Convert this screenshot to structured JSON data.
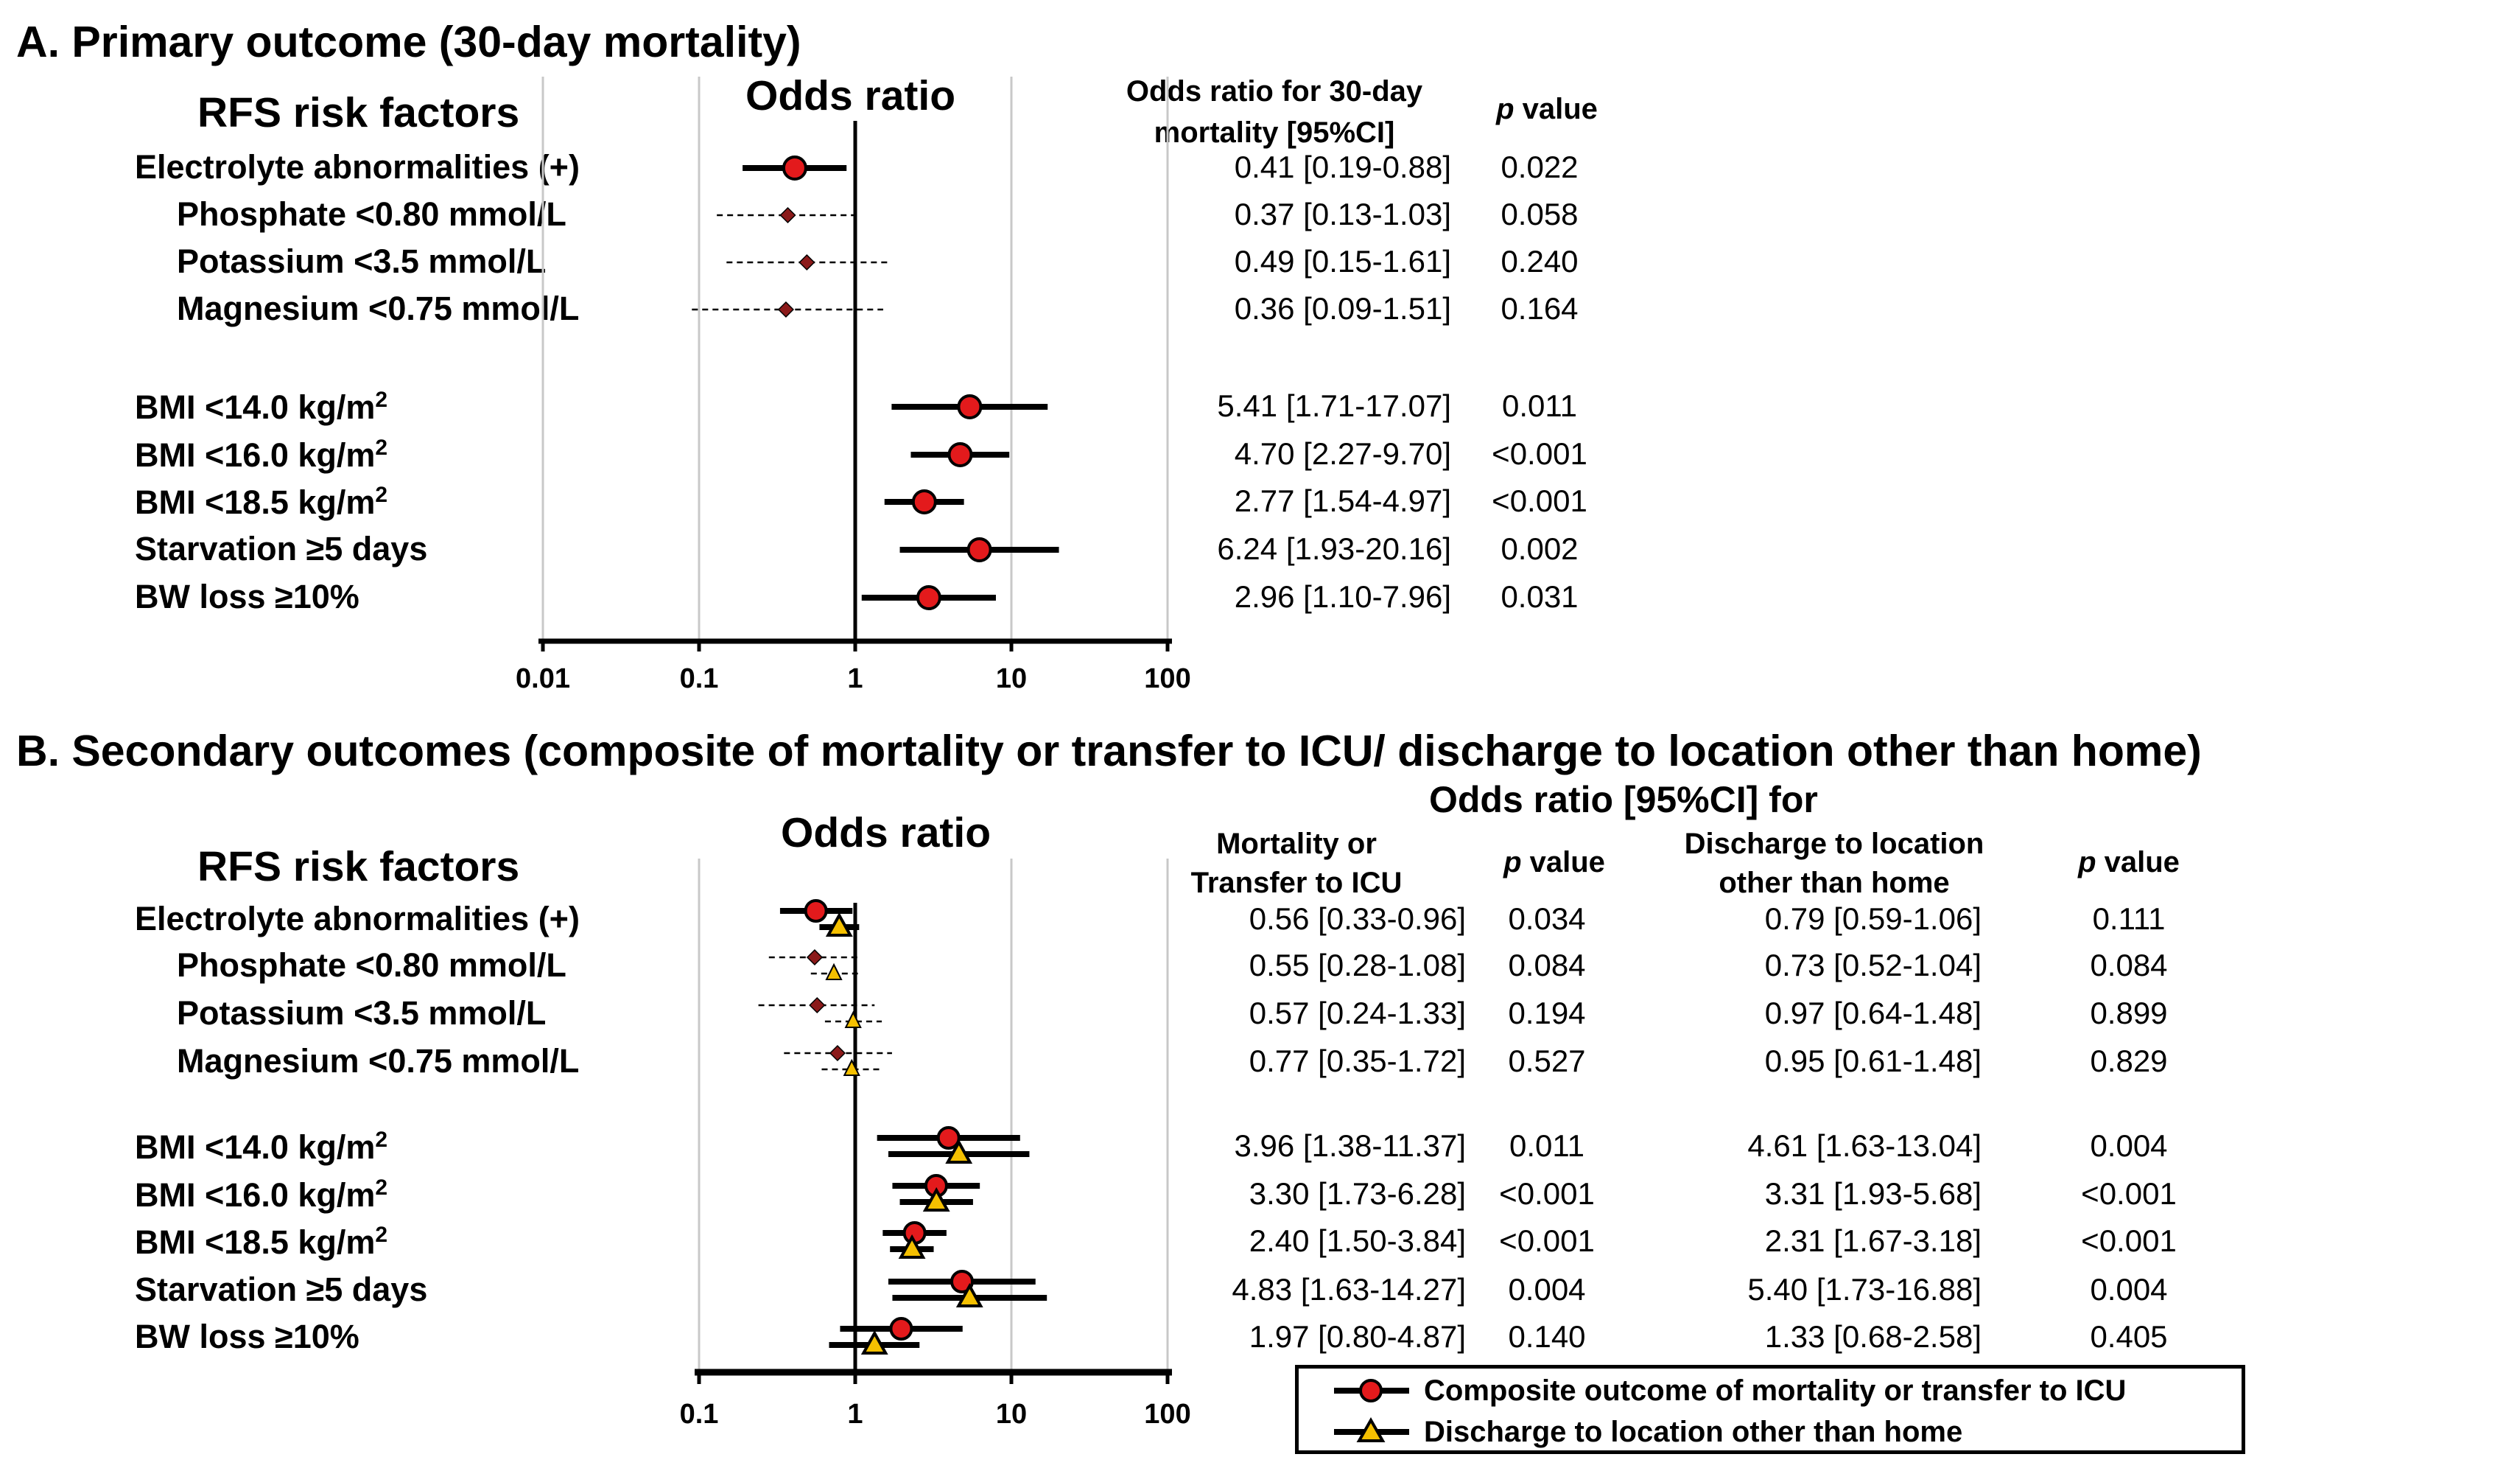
{
  "panel_a": {
    "title": "A. Primary outcome (30-day mortality)",
    "left_header": "RFS risk factors",
    "plot_header": "Odds ratio",
    "col_or_header": [
      "Odds ratio for 30-day",
      "mortality [95%CI]"
    ],
    "col_p_header_italic": "p",
    "col_p_header_rest": " value",
    "axis_ticks": [
      "0.01",
      "0.1",
      "1",
      "10",
      "100"
    ]
  },
  "panel_b": {
    "title": "B. Secondary outcomes (composite of mortality or transfer to ICU/ discharge to location other than home)",
    "left_header": "RFS risk factors",
    "plot_header": "Odds ratio",
    "group_header": "Odds  ratio [95%CI]  for",
    "col1_header": [
      "Mortality or",
      "Transfer to ICU"
    ],
    "col3_header": [
      "Discharge to location",
      "other than home"
    ],
    "col_p_header_italic": "p",
    "col_p_header_rest": " value",
    "axis_ticks": [
      "0.1",
      "1",
      "10",
      "100"
    ]
  },
  "legend": {
    "composite_label": "Composite outcome of mortality or transfer to ICU",
    "discharge_label": "Discharge to location other than home"
  },
  "colors": {
    "red": "#e31a1c",
    "yellow": "#f5c000",
    "dark": "#8b1a1a",
    "grid": "#c8c8c8"
  },
  "chart_data": [
    {
      "type": "forest",
      "title": "A. Primary outcome (30-day mortality)",
      "xlabel": "Odds ratio",
      "xscale": "log",
      "xlim": [
        0.01,
        100
      ],
      "series": [
        {
          "name": "30-day mortality"
        }
      ],
      "rows": [
        {
          "label": "Electrolyte abnormalities (+)",
          "or": 0.41,
          "lo": 0.19,
          "hi": 0.88,
          "ci_text": "0.41 [0.19-0.88]",
          "p": "0.022",
          "sub": false
        },
        {
          "label": "Phosphate <0.80 mmol/L",
          "or": 0.37,
          "lo": 0.13,
          "hi": 1.03,
          "ci_text": "0.37 [0.13-1.03]",
          "p": "0.058",
          "sub": true
        },
        {
          "label": "Potassium <3.5 mmol/L",
          "or": 0.49,
          "lo": 0.15,
          "hi": 1.61,
          "ci_text": "0.49 [0.15-1.61]",
          "p": "0.240",
          "sub": true
        },
        {
          "label": "Magnesium <0.75 mmol/L",
          "or": 0.36,
          "lo": 0.09,
          "hi": 1.51,
          "ci_text": "0.36 [0.09-1.51]",
          "p": "0.164",
          "sub": true
        },
        {
          "label": "BMI <14.0 kg/m",
          "sup": "2",
          "or": 5.41,
          "lo": 1.71,
          "hi": 17.07,
          "ci_text": "5.41 [1.71-17.07]",
          "p": "0.011",
          "sub": false
        },
        {
          "label": "BMI <16.0 kg/m",
          "sup": "2",
          "or": 4.7,
          "lo": 2.27,
          "hi": 9.7,
          "ci_text": "4.70 [2.27-9.70]",
          "p": "<0.001",
          "sub": false
        },
        {
          "label": "BMI <18.5 kg/m",
          "sup": "2",
          "or": 2.77,
          "lo": 1.54,
          "hi": 4.97,
          "ci_text": "2.77 [1.54-4.97]",
          "p": "<0.001",
          "sub": false
        },
        {
          "label": "Starvation ≥5 days",
          "or": 6.24,
          "lo": 1.93,
          "hi": 20.16,
          "ci_text": "6.24 [1.93-20.16]",
          "p": "0.002",
          "sub": false
        },
        {
          "label": "BW loss ≥10%",
          "or": 2.96,
          "lo": 1.1,
          "hi": 7.96,
          "ci_text": "2.96 [1.10-7.96]",
          "p": "0.031",
          "sub": false
        }
      ]
    },
    {
      "type": "forest",
      "title": "B. Secondary outcomes",
      "xlabel": "Odds ratio",
      "xscale": "log",
      "xlim": [
        0.1,
        100
      ],
      "series": [
        {
          "name": "Composite outcome of mortality or transfer to ICU"
        },
        {
          "name": "Discharge to location other than home"
        }
      ],
      "rows": [
        {
          "label": "Electrolyte abnormalities (+)",
          "sub": false,
          "c": {
            "or": 0.56,
            "lo": 0.33,
            "hi": 0.96,
            "ci_text": "0.56 [0.33-0.96]",
            "p": "0.034"
          },
          "d": {
            "or": 0.79,
            "lo": 0.59,
            "hi": 1.06,
            "ci_text": "0.79 [0.59-1.06]",
            "p": "0.111"
          }
        },
        {
          "label": "Phosphate <0.80 mmol/L",
          "sub": true,
          "c": {
            "or": 0.55,
            "lo": 0.28,
            "hi": 1.08,
            "ci_text": "0.55 [0.28-1.08]",
            "p": "0.084"
          },
          "d": {
            "or": 0.73,
            "lo": 0.52,
            "hi": 1.04,
            "ci_text": "0.73 [0.52-1.04]",
            "p": "0.084"
          }
        },
        {
          "label": "Potassium <3.5 mmol/L",
          "sub": true,
          "c": {
            "or": 0.57,
            "lo": 0.24,
            "hi": 1.33,
            "ci_text": "0.57 [0.24-1.33]",
            "p": "0.194"
          },
          "d": {
            "or": 0.97,
            "lo": 0.64,
            "hi": 1.48,
            "ci_text": "0.97 [0.64-1.48]",
            "p": "0.899"
          }
        },
        {
          "label": "Magnesium <0.75 mmol/L",
          "sub": true,
          "c": {
            "or": 0.77,
            "lo": 0.35,
            "hi": 1.72,
            "ci_text": "0.77 [0.35-1.72]",
            "p": "0.527"
          },
          "d": {
            "or": 0.95,
            "lo": 0.61,
            "hi": 1.48,
            "ci_text": "0.95 [0.61-1.48]",
            "p": "0.829"
          }
        },
        {
          "label": "BMI <14.0 kg/m",
          "sup": "2",
          "sub": false,
          "c": {
            "or": 3.96,
            "lo": 1.38,
            "hi": 11.37,
            "ci_text": "3.96 [1.38-11.37]",
            "p": "0.011"
          },
          "d": {
            "or": 4.61,
            "lo": 1.63,
            "hi": 13.04,
            "ci_text": "4.61 [1.63-13.04]",
            "p": "0.004"
          }
        },
        {
          "label": "BMI <16.0 kg/m",
          "sup": "2",
          "sub": false,
          "c": {
            "or": 3.3,
            "lo": 1.73,
            "hi": 6.28,
            "ci_text": "3.30 [1.73-6.28]",
            "p": "<0.001"
          },
          "d": {
            "or": 3.31,
            "lo": 1.93,
            "hi": 5.68,
            "ci_text": "3.31 [1.93-5.68]",
            "p": "<0.001"
          }
        },
        {
          "label": "BMI <18.5 kg/m",
          "sup": "2",
          "sub": false,
          "c": {
            "or": 2.4,
            "lo": 1.5,
            "hi": 3.84,
            "ci_text": "2.40 [1.50-3.84]",
            "p": "<0.001"
          },
          "d": {
            "or": 2.31,
            "lo": 1.67,
            "hi": 3.18,
            "ci_text": "2.31 [1.67-3.18]",
            "p": "<0.001"
          }
        },
        {
          "label": "Starvation ≥5 days",
          "sub": false,
          "c": {
            "or": 4.83,
            "lo": 1.63,
            "hi": 14.27,
            "ci_text": "4.83 [1.63-14.27]",
            "p": "0.004"
          },
          "d": {
            "or": 5.4,
            "lo": 1.73,
            "hi": 16.88,
            "ci_text": "5.40 [1.73-16.88]",
            "p": "0.004"
          }
        },
        {
          "label": "BW loss ≥10%",
          "sub": false,
          "c": {
            "or": 1.97,
            "lo": 0.8,
            "hi": 4.87,
            "ci_text": "1.97 [0.80-4.87]",
            "p": "0.140"
          },
          "d": {
            "or": 1.33,
            "lo": 0.68,
            "hi": 2.58,
            "ci_text": "1.33 [0.68-2.58]",
            "p": "0.405"
          }
        }
      ]
    }
  ]
}
